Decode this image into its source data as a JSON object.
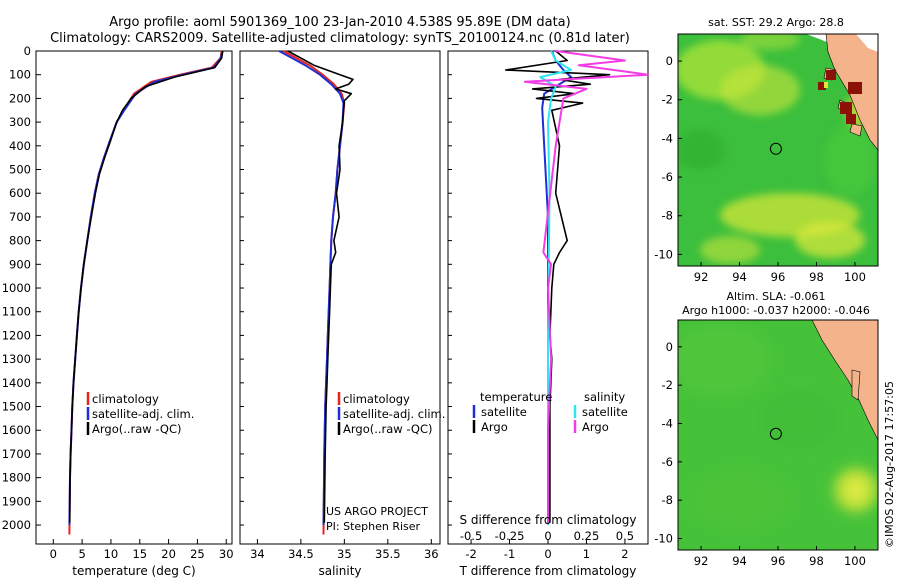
{
  "title": {
    "line1": "Argo profile: aoml 5901369_100 23-Jan-2010 4.538S 95.89E (DM data)",
    "line2": "Climatology: CARS2009. Satellite-adjusted climatology: synTS_20100124.nc (0.81d later)"
  },
  "credit": "©IMOS 02-Aug-2017 17:57:05",
  "project": {
    "line1": "US ARGO PROJECT",
    "line2": "PI: Stephen Riser"
  },
  "colors": {
    "clim": "#e8231c",
    "sat": "#1f2fd6",
    "argo": "#000000",
    "sat_salt": "#2ee6f0",
    "argo_salt": "#f23ce6",
    "ocean": "#3fbf3f",
    "land": "#f4b38a"
  },
  "chart_data": [
    {
      "type": "line",
      "name": "temperature",
      "xlabel": "temperature (deg C)",
      "ylabel": "depth",
      "xlim": [
        -3,
        31
      ],
      "ylim": [
        2080,
        0
      ],
      "xticks": [
        0,
        5,
        10,
        15,
        20,
        25,
        30
      ],
      "yticks": [
        0,
        100,
        200,
        300,
        400,
        500,
        600,
        700,
        800,
        900,
        1000,
        1100,
        1200,
        1300,
        1400,
        1500,
        1600,
        1700,
        1800,
        1900,
        2000
      ],
      "legend": [
        "climatology",
        "satellite-adj. clim.",
        "Argo(..raw -QC)"
      ],
      "series": [
        {
          "name": "climatology",
          "color": "#e8231c",
          "x": [
            29.2,
            29.0,
            27.5,
            22,
            17,
            14,
            12.2,
            11,
            9.8,
            8.8,
            7.9,
            7.2,
            6.5,
            5.9,
            5.3,
            4.8,
            4.4,
            4.1,
            3.8,
            3.5,
            3.3,
            3.15,
            3.0,
            2.9,
            2.8
          ],
          "y": [
            0,
            30,
            70,
            100,
            130,
            180,
            250,
            300,
            380,
            450,
            520,
            600,
            700,
            800,
            900,
            1000,
            1100,
            1200,
            1300,
            1400,
            1500,
            1600,
            1700,
            1800,
            2040
          ]
        },
        {
          "name": "satellite-adj. clim.",
          "color": "#1f2fd6",
          "x": [
            29.3,
            29.1,
            27.8,
            22.5,
            17.5,
            14.3,
            12.3,
            11,
            9.8,
            8.8,
            7.9,
            7.2,
            6.5,
            5.9,
            5.3,
            4.8,
            4.4,
            4.1,
            3.8,
            3.5,
            3.3,
            3.15,
            3.0,
            2.9,
            2.8
          ],
          "y": [
            0,
            30,
            70,
            100,
            130,
            180,
            250,
            300,
            380,
            450,
            520,
            600,
            700,
            800,
            900,
            1000,
            1100,
            1200,
            1300,
            1400,
            1500,
            1600,
            1700,
            1800,
            2000
          ]
        },
        {
          "name": "Argo(..raw -QC)",
          "color": "#000000",
          "x": [
            29.4,
            29.2,
            28,
            21,
            16,
            14.5,
            13.5,
            12,
            11,
            9.9,
            8.9,
            8,
            7.3,
            6.6,
            5.9,
            5.3,
            4.8,
            4.4,
            4.1,
            3.8,
            3.5,
            3.3,
            3.15,
            3.0,
            2.9,
            2.85
          ],
          "y": [
            0,
            30,
            70,
            110,
            150,
            180,
            200,
            250,
            300,
            380,
            450,
            520,
            600,
            700,
            800,
            900,
            1000,
            1100,
            1200,
            1300,
            1400,
            1500,
            1600,
            1700,
            1800,
            1990
          ]
        }
      ]
    },
    {
      "type": "line",
      "name": "salinity",
      "xlabel": "salinity",
      "xlim": [
        33.8,
        36.1
      ],
      "ylim": [
        2080,
        0
      ],
      "xticks": [
        34,
        34.5,
        35,
        35.5,
        36
      ],
      "legend": [
        "climatology",
        "satellite-adj. clim.",
        "Argo(..raw -QC)"
      ],
      "series": [
        {
          "name": "climatology",
          "color": "#e8231c",
          "x": [
            34.3,
            34.45,
            34.6,
            34.75,
            34.88,
            34.97,
            35.0,
            34.98,
            34.95,
            34.92,
            34.9,
            34.87,
            34.85,
            34.84,
            34.83,
            34.82,
            34.81,
            34.8,
            34.79,
            34.78,
            34.77,
            34.76
          ],
          "y": [
            0,
            30,
            60,
            100,
            140,
            180,
            220,
            300,
            400,
            500,
            600,
            700,
            800,
            900,
            1000,
            1100,
            1200,
            1300,
            1400,
            1500,
            1700,
            2040
          ]
        },
        {
          "name": "satellite-adj. clim.",
          "color": "#1f2fd6",
          "x": [
            34.25,
            34.4,
            34.55,
            34.72,
            34.85,
            34.95,
            34.99,
            34.98,
            34.95,
            34.92,
            34.9,
            34.87,
            34.85,
            34.84,
            34.83,
            34.82,
            34.81,
            34.8,
            34.79,
            34.78,
            34.77,
            34.76
          ],
          "y": [
            0,
            30,
            60,
            100,
            140,
            180,
            220,
            300,
            400,
            500,
            600,
            700,
            800,
            900,
            1000,
            1100,
            1200,
            1300,
            1400,
            1500,
            1700,
            2000
          ]
        },
        {
          "name": "Argo(..raw -QC)",
          "color": "#000000",
          "x": [
            34.35,
            34.5,
            34.65,
            34.8,
            34.95,
            35.1,
            35.05,
            34.9,
            35.08,
            35.0,
            34.98,
            34.94,
            34.95,
            34.91,
            34.94,
            34.88,
            34.9,
            34.85,
            34.84,
            34.83,
            34.82,
            34.81,
            34.8,
            34.79,
            34.78,
            34.77
          ],
          "y": [
            0,
            30,
            60,
            80,
            100,
            120,
            140,
            160,
            180,
            210,
            300,
            400,
            500,
            600,
            700,
            800,
            850,
            900,
            1000,
            1100,
            1200,
            1300,
            1400,
            1500,
            1700,
            1990
          ]
        }
      ]
    },
    {
      "type": "line",
      "name": "differences",
      "xlabel": "T difference from climatology",
      "xlabel_top": "S difference from climatology",
      "xlim": [
        -2.6,
        2.6
      ],
      "ylim": [
        2080,
        0
      ],
      "xticks": [
        -2,
        -1,
        0,
        1,
        2
      ],
      "xticks_salt": [
        -0.5,
        -0.25,
        0,
        0.25,
        0.5
      ],
      "legend_header": [
        "temperature",
        "salinity"
      ],
      "legend": [
        "satellite",
        "Argo",
        "satellite",
        "Argo"
      ],
      "series": [
        {
          "name": "T satellite",
          "color": "#1f2fd6",
          "x": [
            0.1,
            0.2,
            0.4,
            0.6,
            0.3,
            -0.1,
            -0.15,
            -0.1,
            0,
            0,
            0
          ],
          "y": [
            0,
            40,
            80,
            110,
            140,
            180,
            240,
            400,
            700,
            1200,
            2000
          ]
        },
        {
          "name": "T Argo",
          "color": "#000000",
          "x": [
            0.2,
            0.5,
            -1.1,
            1.6,
            0.3,
            1.1,
            -0.4,
            0.7,
            -0.3,
            0.9,
            0.1,
            0.3,
            0.2,
            0.5,
            0.3,
            0.15,
            0.1,
            0.05,
            0.1,
            0.05,
            0.05
          ],
          "y": [
            0,
            40,
            80,
            100,
            120,
            140,
            160,
            180,
            200,
            220,
            250,
            400,
            600,
            800,
            850,
            900,
            1000,
            1200,
            1300,
            1500,
            1990
          ]
        },
        {
          "name": "S satellite",
          "color": "#2ee6f0",
          "x": [
            0.02,
            0.05,
            0.15,
            -0.05,
            0.05,
            0.02,
            0,
            0.01,
            0,
            0
          ],
          "y": [
            0,
            40,
            80,
            110,
            150,
            200,
            300,
            600,
            1200,
            2000
          ]
        },
        {
          "name": "S Argo",
          "color": "#f23ce6",
          "x": [
            0.05,
            0.5,
            0.2,
            0.65,
            -0.15,
            0.25,
            0.1,
            0.05,
            -0.03,
            0.02,
            0,
            0.02,
            0,
            0
          ],
          "y": [
            0,
            40,
            60,
            100,
            130,
            160,
            200,
            400,
            850,
            900,
            1000,
            1300,
            1600,
            1990
          ]
        }
      ]
    }
  ],
  "maps": [
    {
      "name": "sst-map",
      "title": "sat. SST: 29.2 Argo: 28.8",
      "xticks": [
        92,
        94,
        96,
        98,
        100
      ],
      "yticks": [
        0,
        -2,
        -4,
        -6,
        -8,
        -10
      ],
      "xlim": [
        90.8,
        101.2
      ],
      "ylim": [
        -10.6,
        1.4
      ],
      "marker": [
        95.89,
        -4.538
      ]
    },
    {
      "name": "sla-map",
      "title_line1": "Altim. SLA: -0.061",
      "title_line2": "Argo h1000: -0.037 h2000: -0.046",
      "xticks": [
        92,
        94,
        96,
        98,
        100
      ],
      "yticks": [
        0,
        -2,
        -4,
        -6,
        -8,
        -10
      ],
      "xlim": [
        90.8,
        101.2
      ],
      "ylim": [
        -10.6,
        1.4
      ],
      "marker": [
        95.89,
        -4.538
      ]
    }
  ]
}
